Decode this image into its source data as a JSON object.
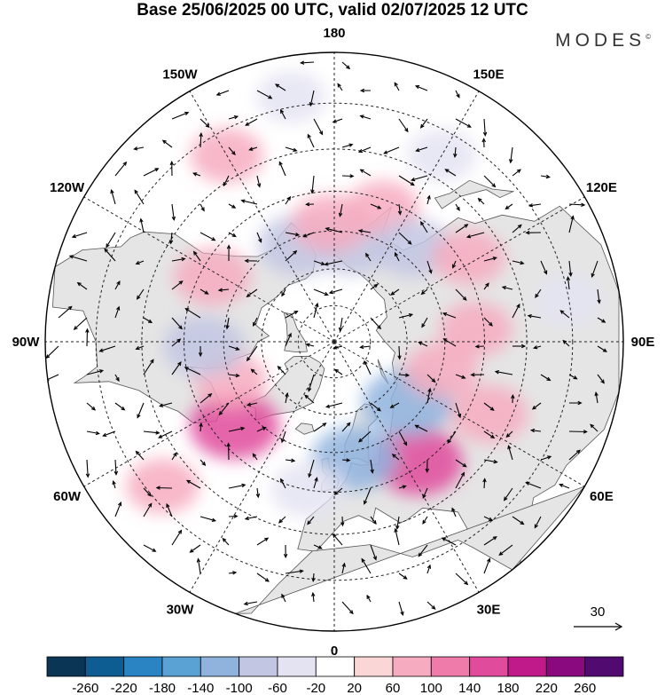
{
  "title": "Base 25/06/2025 00 UTC, valid 02/07/2025 12 UTC",
  "brand": {
    "name": "MODES",
    "mark": "©"
  },
  "map": {
    "projection": "north-polar-stereographic",
    "longitude_labels": [
      {
        "text": "180",
        "lon": 180
      },
      {
        "text": "150E",
        "lon": 150
      },
      {
        "text": "120E",
        "lon": 120
      },
      {
        "text": "90E",
        "lon": 90
      },
      {
        "text": "60E",
        "lon": 60
      },
      {
        "text": "30E",
        "lon": 30
      },
      {
        "text": "0",
        "lon": 0
      },
      {
        "text": "30W",
        "lon": -30
      },
      {
        "text": "60W",
        "lon": -60
      },
      {
        "text": "90W",
        "lon": -90
      },
      {
        "text": "120W",
        "lon": -120
      },
      {
        "text": "150W",
        "lon": -150
      }
    ],
    "latitude_circles_deg": [
      80,
      70,
      60,
      50,
      40,
      30
    ],
    "land_color": "#e5e5e5",
    "ocean_color": "#ffffff",
    "anomalies": [
      {
        "lon": 35,
        "lat": 51,
        "value": 140
      },
      {
        "lon": 50,
        "lat": 64,
        "value": -140
      },
      {
        "lon": 10,
        "lat": 58,
        "value": -120
      },
      {
        "lon": -10,
        "lat": 50,
        "value": -60
      },
      {
        "lon": -50,
        "lat": 55,
        "value": 140
      },
      {
        "lon": -70,
        "lat": 60,
        "value": 60
      },
      {
        "lon": -88,
        "lat": 55,
        "value": -100
      },
      {
        "lon": -118,
        "lat": 53,
        "value": 80
      },
      {
        "lon": -160,
        "lat": 62,
        "value": -100
      },
      {
        "lon": 170,
        "lat": 63,
        "value": -100
      },
      {
        "lon": -178,
        "lat": 58,
        "value": 80
      },
      {
        "lon": 160,
        "lat": 52,
        "value": 60
      },
      {
        "lon": 140,
        "lat": 57,
        "value": -80
      },
      {
        "lon": 122,
        "lat": 48,
        "value": 60
      },
      {
        "lon": 95,
        "lat": 52,
        "value": 60
      },
      {
        "lon": 75,
        "lat": 60,
        "value": 60
      },
      {
        "lon": 65,
        "lat": 45,
        "value": 80
      },
      {
        "lon": -150,
        "lat": 35,
        "value": 60
      },
      {
        "lon": -50,
        "lat": 33,
        "value": 60
      },
      {
        "lon": 150,
        "lat": 35,
        "value": -40
      },
      {
        "lon": -170,
        "lat": 28,
        "value": -40
      },
      {
        "lon": 100,
        "lat": 30,
        "value": -40
      }
    ],
    "reference_vector": {
      "label": "30"
    }
  },
  "colorbar": {
    "ticks": [
      "-260",
      "-220",
      "-180",
      "-140",
      "-100",
      "-60",
      "-20",
      "20",
      "60",
      "100",
      "140",
      "180",
      "220",
      "260"
    ],
    "colors": [
      "#0a3554",
      "#0e5d92",
      "#2a83c2",
      "#5aa2d3",
      "#8fb3dd",
      "#c2c6e3",
      "#e4e3f2",
      "#ffffff",
      "#fbd6d6",
      "#f7abc0",
      "#ef7bab",
      "#e04b9c",
      "#c0198a",
      "#8a097e",
      "#510a6f"
    ]
  }
}
